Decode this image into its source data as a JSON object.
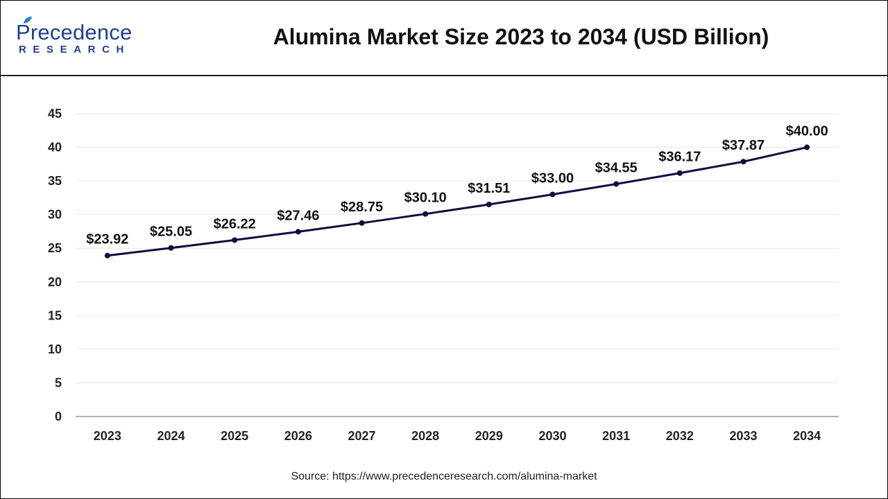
{
  "header": {
    "logo_word": "Precedence",
    "logo_sub": "RESEARCH",
    "title": "Alumina Market Size 2023 to 2034 (USD Billion)"
  },
  "source": "Source: https://www.precedenceresearch.com/alumina-market",
  "colors": {
    "line": "#0d0d3d",
    "point": "#0d0d3d",
    "grid": "#e6e6e6",
    "axis": "#999999",
    "brand": "#1f3f8f"
  },
  "chart_data": {
    "type": "line",
    "title": "Alumina Market Size 2023 to 2034 (USD Billion)",
    "xlabel": "",
    "ylabel": "",
    "categories": [
      "2023",
      "2024",
      "2025",
      "2026",
      "2027",
      "2028",
      "2029",
      "2030",
      "2031",
      "2032",
      "2033",
      "2034"
    ],
    "series": [
      {
        "values": [
          23.92,
          25.05,
          26.22,
          27.46,
          28.75,
          30.1,
          31.51,
          33.0,
          34.55,
          36.17,
          37.87,
          40.0
        ],
        "labels": [
          "$23.92",
          "$25.05",
          "$26.22",
          "$27.46",
          "$28.75",
          "$30.10",
          "$31.51",
          "$33.00",
          "$34.55",
          "$36.17",
          "$37.87",
          "$40.00"
        ]
      }
    ],
    "ylim": [
      0,
      45
    ],
    "yticks": [
      0,
      5,
      10,
      15,
      20,
      25,
      30,
      35,
      40,
      45
    ],
    "grid": true,
    "legend": "none"
  }
}
